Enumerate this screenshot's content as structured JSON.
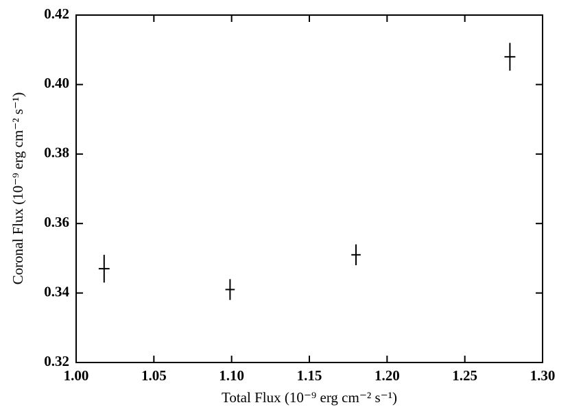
{
  "chart_data": {
    "type": "scatter",
    "x_label": "Total Flux (10⁻⁹ erg cm⁻² s⁻¹)",
    "y_label": "Coronal Flux (10⁻⁹ erg cm⁻² s⁻¹)",
    "series": [
      {
        "color": "#000000",
        "x": [
          1.018,
          1.099,
          1.18,
          1.279
        ],
        "values": [
          0.347,
          0.341,
          0.351,
          0.408
        ],
        "xerr": [
          0.0035,
          0.003,
          0.003,
          0.0035
        ],
        "yerr": [
          0.004,
          0.003,
          0.003,
          0.004
        ]
      }
    ],
    "xlim": [
      1.0,
      1.3
    ],
    "ylim": [
      0.32,
      0.42
    ],
    "xticks": [
      {
        "value": 1.0,
        "label": "1.00"
      },
      1.05,
      {
        "value": 1.1,
        "label": "1.10"
      },
      1.15,
      {
        "value": 1.2,
        "label": "1.20"
      },
      1.25,
      {
        "value": 1.3,
        "label": "1.30"
      }
    ],
    "yticks": [
      0.32,
      0.34,
      0.36,
      0.38,
      {
        "value": 0.4,
        "label": "0.40"
      },
      0.42
    ]
  }
}
